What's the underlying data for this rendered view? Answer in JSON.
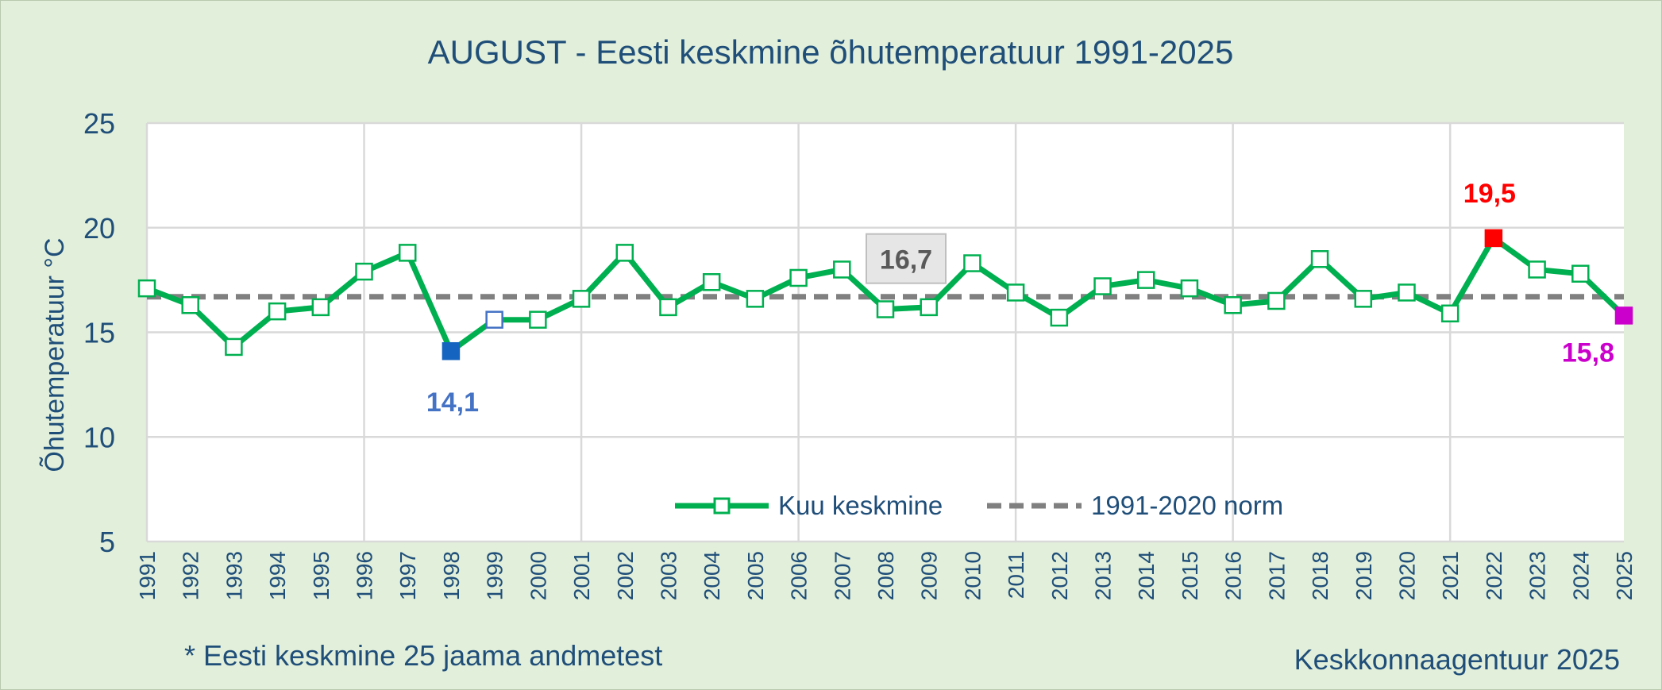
{
  "chart_data": {
    "type": "line",
    "title": "AUGUST - Eesti keskmine õhutemperatuur 1991-2025",
    "ylabel": "Õhutemperatuur °C",
    "xlabel": "",
    "ylim": [
      5,
      25
    ],
    "yticks": [
      "5",
      "10",
      "15",
      "20",
      "25"
    ],
    "categories": [
      "1991",
      "1992",
      "1993",
      "1994",
      "1995",
      "1996",
      "1997",
      "1998",
      "1999",
      "2000",
      "2001",
      "2002",
      "2003",
      "2004",
      "2005",
      "2006",
      "2007",
      "2008",
      "2009",
      "2010",
      "2011",
      "2012",
      "2013",
      "2014",
      "2015",
      "2016",
      "2017",
      "2018",
      "2019",
      "2020",
      "2021",
      "2022",
      "2023",
      "2024",
      "2025"
    ],
    "series": [
      {
        "name": "Kuu keskmine",
        "color": "#00b050",
        "values": [
          17.1,
          16.3,
          14.3,
          16.0,
          16.2,
          17.9,
          18.8,
          14.1,
          15.6,
          15.6,
          16.6,
          18.8,
          16.2,
          17.4,
          16.6,
          17.6,
          18.0,
          16.1,
          16.2,
          18.3,
          16.9,
          15.7,
          17.2,
          17.5,
          17.1,
          16.3,
          16.5,
          18.5,
          16.6,
          16.9,
          15.9,
          19.5,
          18.0,
          17.8,
          15.8
        ]
      },
      {
        "name": "1991-2020 norm",
        "color": "#808080",
        "value": 16.7
      }
    ],
    "highlights": [
      {
        "year": "1998",
        "label": "14,1",
        "color": "#1565c0",
        "labelColor": "#4472c4"
      },
      {
        "year": "2022",
        "label": "19,5",
        "color": "#ff0000",
        "labelColor": "#ff0000"
      },
      {
        "year": "2025",
        "label": "15,8",
        "color": "#cc00cc",
        "labelColor": "#cc00cc"
      }
    ],
    "highlight_outline": {
      "year": "1999",
      "color": "#4472c4"
    },
    "norm_label": "16,7",
    "legend": [
      {
        "name": "Kuu keskmine",
        "style": "line-marker",
        "color": "#00b050"
      },
      {
        "name": "1991-2020 norm",
        "style": "dashed",
        "color": "#808080"
      }
    ],
    "legend_position": "bottom-center"
  },
  "footer": {
    "note": "* Eesti keskmine 25 jaama andmetest",
    "source": "Keskkonnaagentuur 2025"
  }
}
